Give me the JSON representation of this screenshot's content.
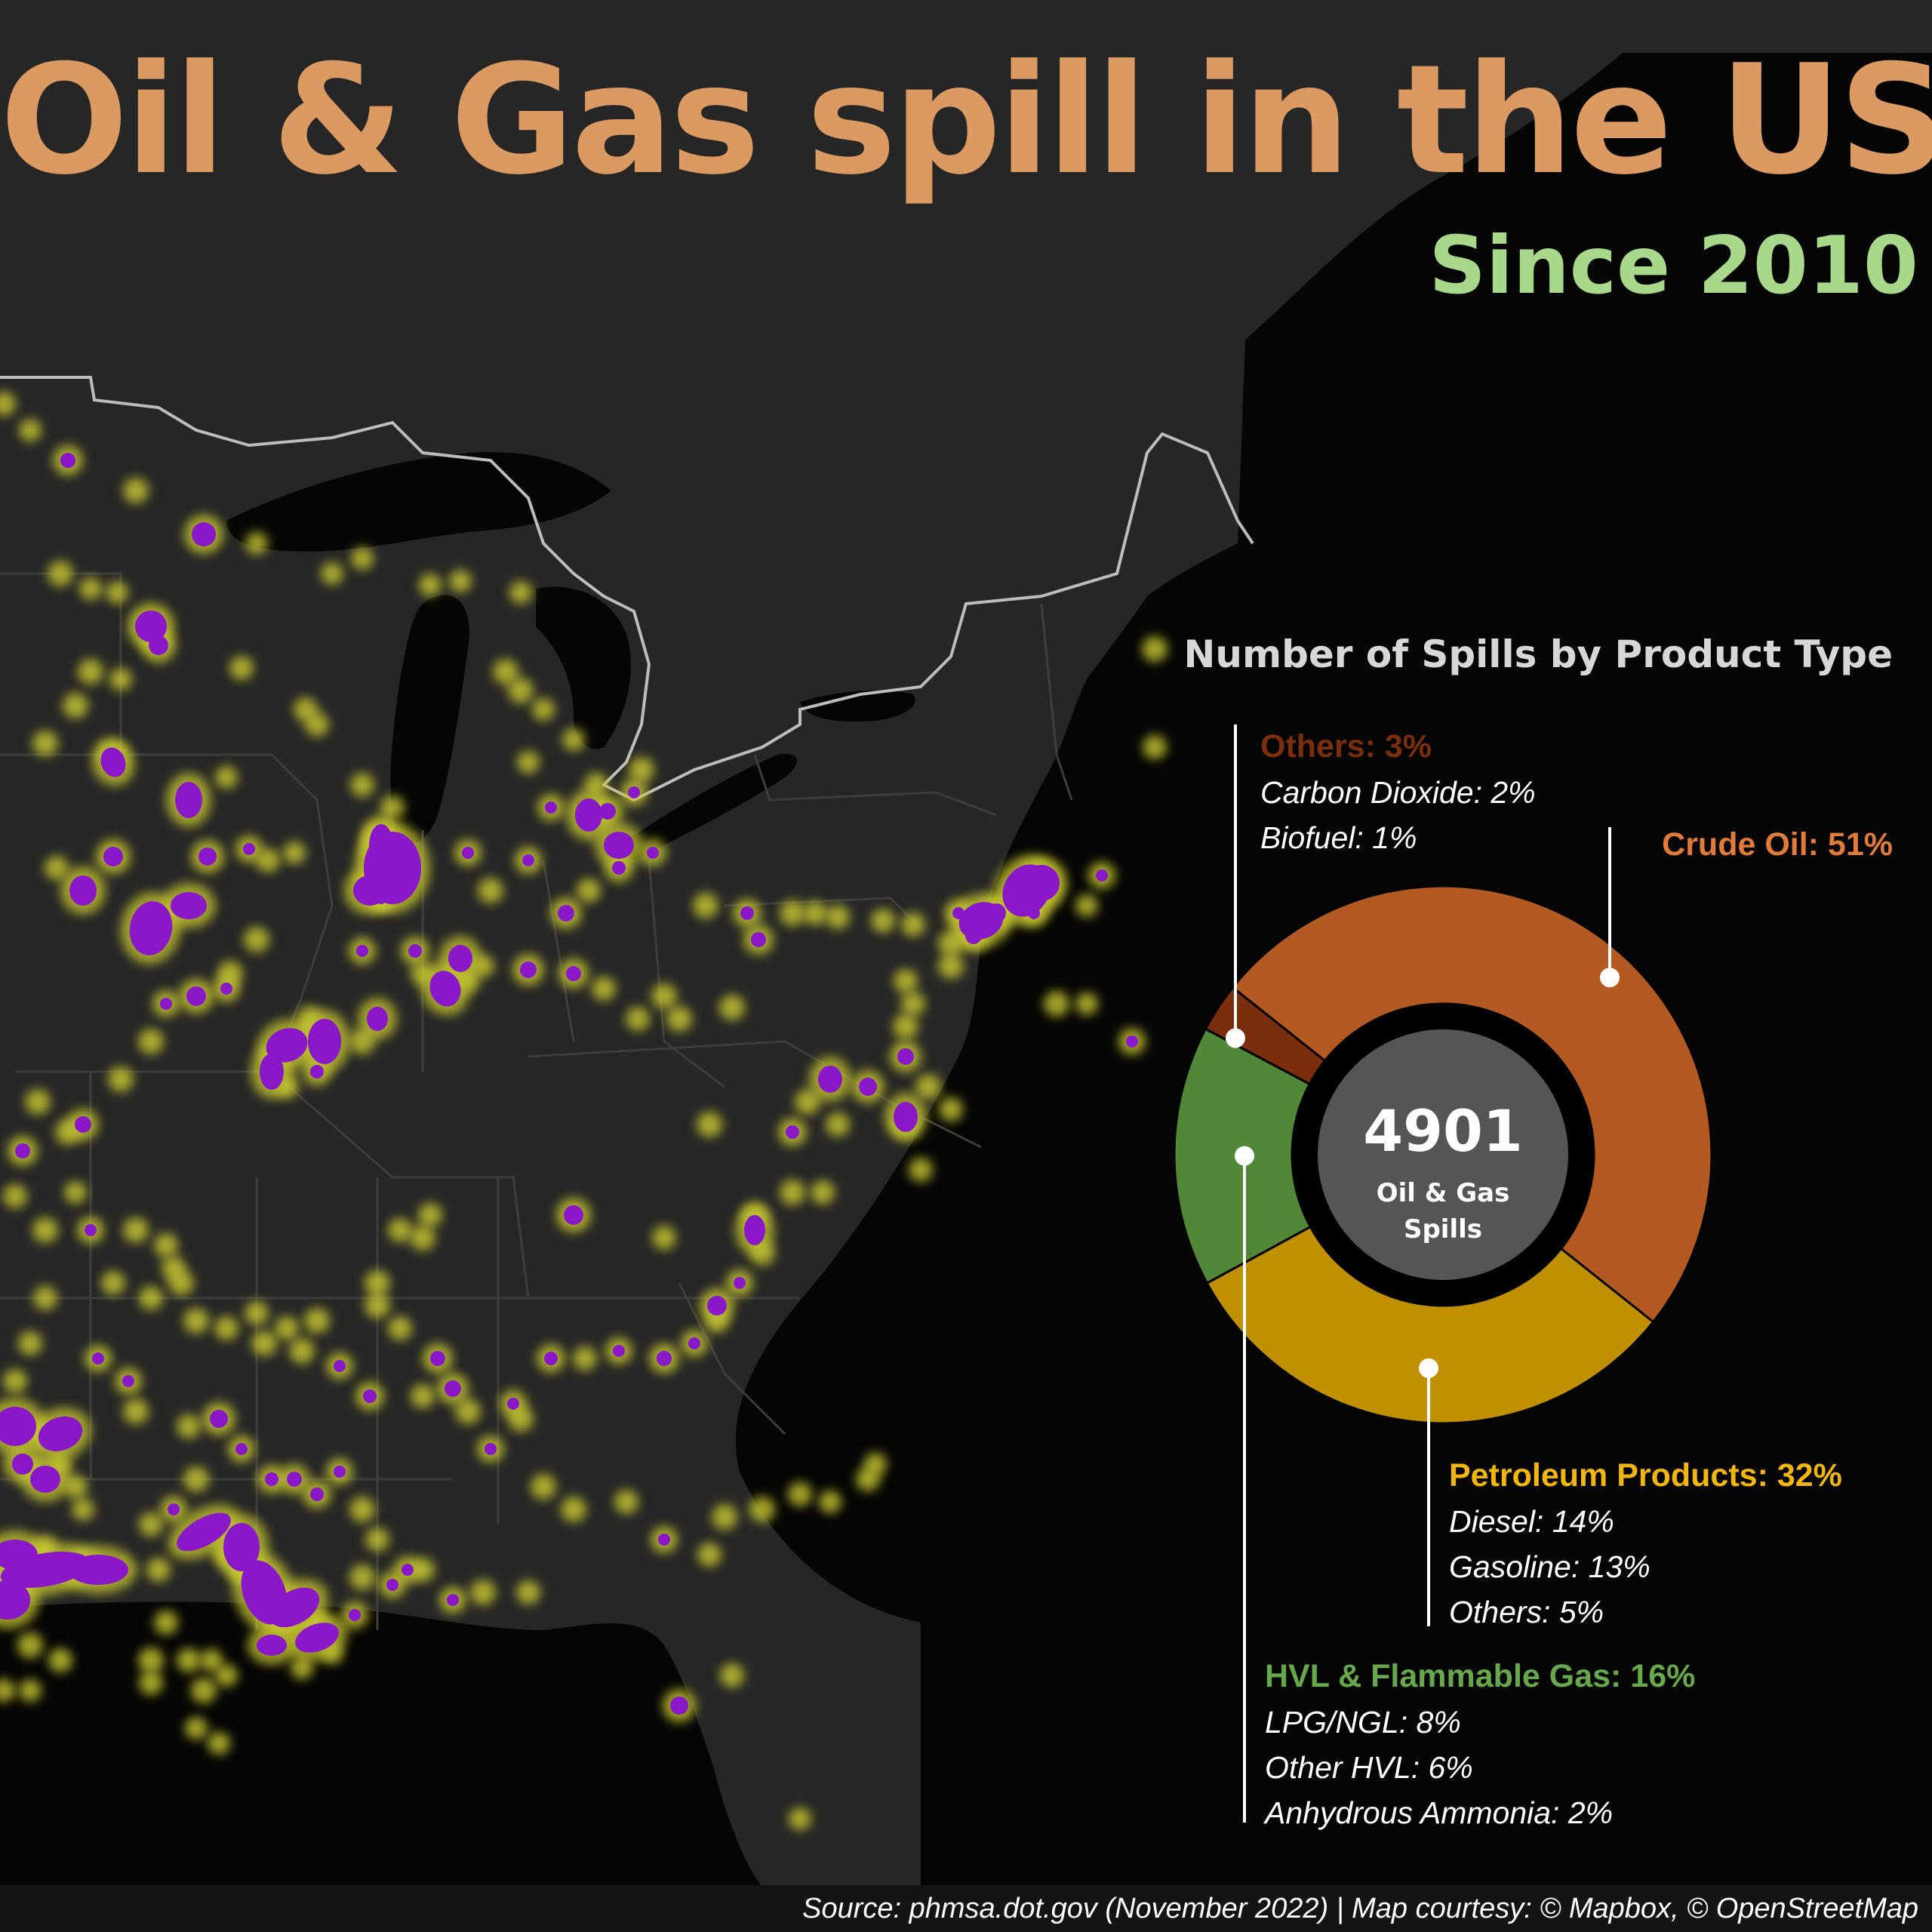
{
  "title": "Oil & Gas spill in the US",
  "subtitle": "Since 2010",
  "colors": {
    "title": "#db9a62",
    "subtitle": "#a8d98a",
    "land": "#262626",
    "water": "#050505",
    "spill_glow": "#c9c930",
    "spill_core": "#8a18c9",
    "crude_oil": "#b35a23",
    "petroleum": "#c09000",
    "hvl": "#508838",
    "others": "#7a2e0e",
    "center": "#555555"
  },
  "map": {
    "style": "dark",
    "region": "Eastern United States",
    "marker": "spill-dot"
  },
  "chart_data": {
    "type": "pie",
    "title": "Number of Spills by Product Type",
    "total": {
      "value": "4901",
      "label_line1": "Oil & Gas",
      "label_line2": "Spills"
    },
    "slices": [
      {
        "label": "Crude Oil: 51%",
        "value": 51,
        "color": "#b35a23",
        "subs": []
      },
      {
        "label": "Petroleum Products: 32%",
        "value": 32,
        "color": "#c09000",
        "subs": [
          "Diesel: 14%",
          "Gasoline: 13%",
          "Others: 5%"
        ]
      },
      {
        "label": "HVL & Flammable Gas: 16%",
        "value": 16,
        "color": "#508838",
        "subs": [
          "LPG/NGL: 8%",
          "Other HVL: 6%",
          "Anhydrous Ammonia: 2%"
        ]
      },
      {
        "label": "Others: 3%",
        "value": 3,
        "color": "#7a2e0e",
        "subs": [
          "Carbon Dioxide: 2%",
          "Biofuel: 1%"
        ]
      }
    ]
  },
  "source": "Source: phmsa.dot.gov (November 2022) | Map courtesy: © Mapbox, © OpenStreetMap"
}
